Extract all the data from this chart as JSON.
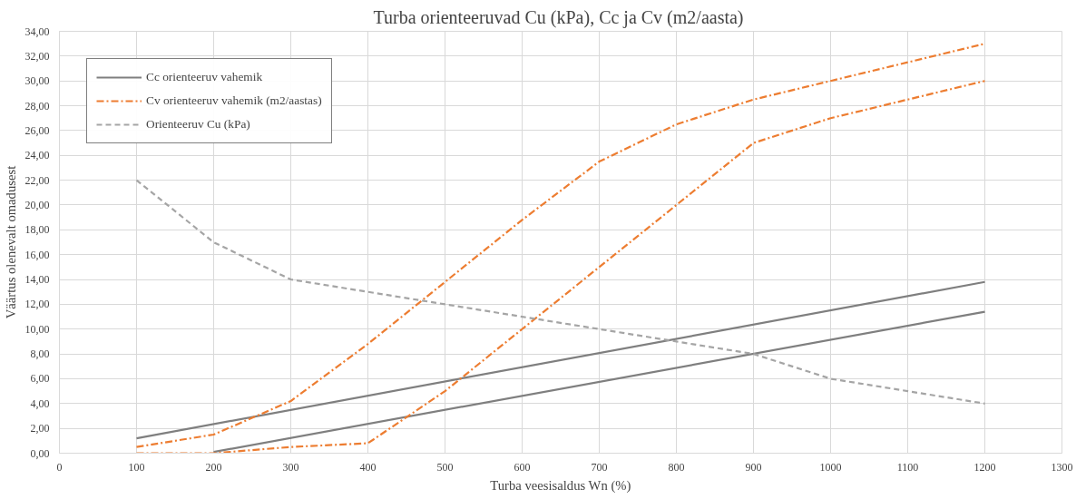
{
  "chart_data": {
    "type": "line",
    "title": "Turba orienteeruvad  Cu (kPa), Cc ja Cv (m2/aasta)",
    "xlabel": "Turba veesisaldus Wn (%)",
    "ylabel": "Väärtus olenevalt omadusest",
    "xlim": [
      0,
      1300
    ],
    "xticks": [
      0,
      100,
      200,
      300,
      400,
      500,
      600,
      700,
      800,
      900,
      1000,
      1100,
      1200,
      1300
    ],
    "ylim": [
      0,
      34
    ],
    "yticks": [
      {
        "value": 0,
        "label": "0,00"
      },
      {
        "value": 2,
        "label": "2,00"
      },
      {
        "value": 4,
        "label": "4,00"
      },
      {
        "value": 6,
        "label": "6,00"
      },
      {
        "value": 8,
        "label": "8,00"
      },
      {
        "value": 10,
        "label": "10,00"
      },
      {
        "value": 12,
        "label": "12,00"
      },
      {
        "value": 14,
        "label": "14,00"
      },
      {
        "value": 16,
        "label": "16,00"
      },
      {
        "value": 18,
        "label": "18,00"
      },
      {
        "value": 20,
        "label": "20,00"
      },
      {
        "value": 22,
        "label": "22,00"
      },
      {
        "value": 24,
        "label": "24,00"
      },
      {
        "value": 26,
        "label": "26,00"
      },
      {
        "value": 28,
        "label": "28,00"
      },
      {
        "value": 30,
        "label": "30,00"
      },
      {
        "value": 32,
        "label": "32,00"
      },
      {
        "value": 34,
        "label": "34,00"
      }
    ],
    "grid": true,
    "legend": "top left",
    "marker": "none",
    "series": [
      {
        "name": "Cc orienteeruv vahemik",
        "color": "#7f7f7f",
        "line_style": "solid",
        "x": [
          100,
          1200
        ],
        "values": [
          1.2,
          13.8
        ]
      },
      {
        "color": "#7f7f7f",
        "line_style": "solid",
        "x": [
          200,
          1200
        ],
        "values": [
          0.1,
          11.4
        ]
      },
      {
        "name": "Cv orienteeruv vahemik (m2/aastas)",
        "color": "#ed7d31",
        "line_style": "dashdot",
        "x": [
          100,
          200,
          300,
          400,
          500,
          600,
          700,
          800,
          900,
          1000,
          1100,
          1200
        ],
        "values": [
          0.5,
          1.5,
          4.2,
          8.8,
          13.8,
          18.8,
          23.5,
          26.5,
          28.5,
          30,
          31.5,
          33
        ]
      },
      {
        "color": "#ed7d31",
        "line_style": "dashdot",
        "x": [
          100,
          200,
          300,
          400,
          500,
          600,
          700,
          800,
          900,
          1000,
          1100,
          1200
        ],
        "values": [
          0,
          0,
          0.5,
          0.8,
          5,
          10,
          15,
          20,
          25,
          27,
          28.5,
          30
        ]
      },
      {
        "name": "Orienteeruv Cu (kPa)",
        "color": "#a5a5a5",
        "line_style": "dashed",
        "x": [
          100,
          200,
          300,
          400,
          500,
          600,
          700,
          800,
          900,
          1000,
          1100,
          1200
        ],
        "values": [
          22,
          17,
          14,
          13,
          12,
          11,
          10,
          9,
          8,
          6,
          5,
          4
        ]
      }
    ]
  }
}
